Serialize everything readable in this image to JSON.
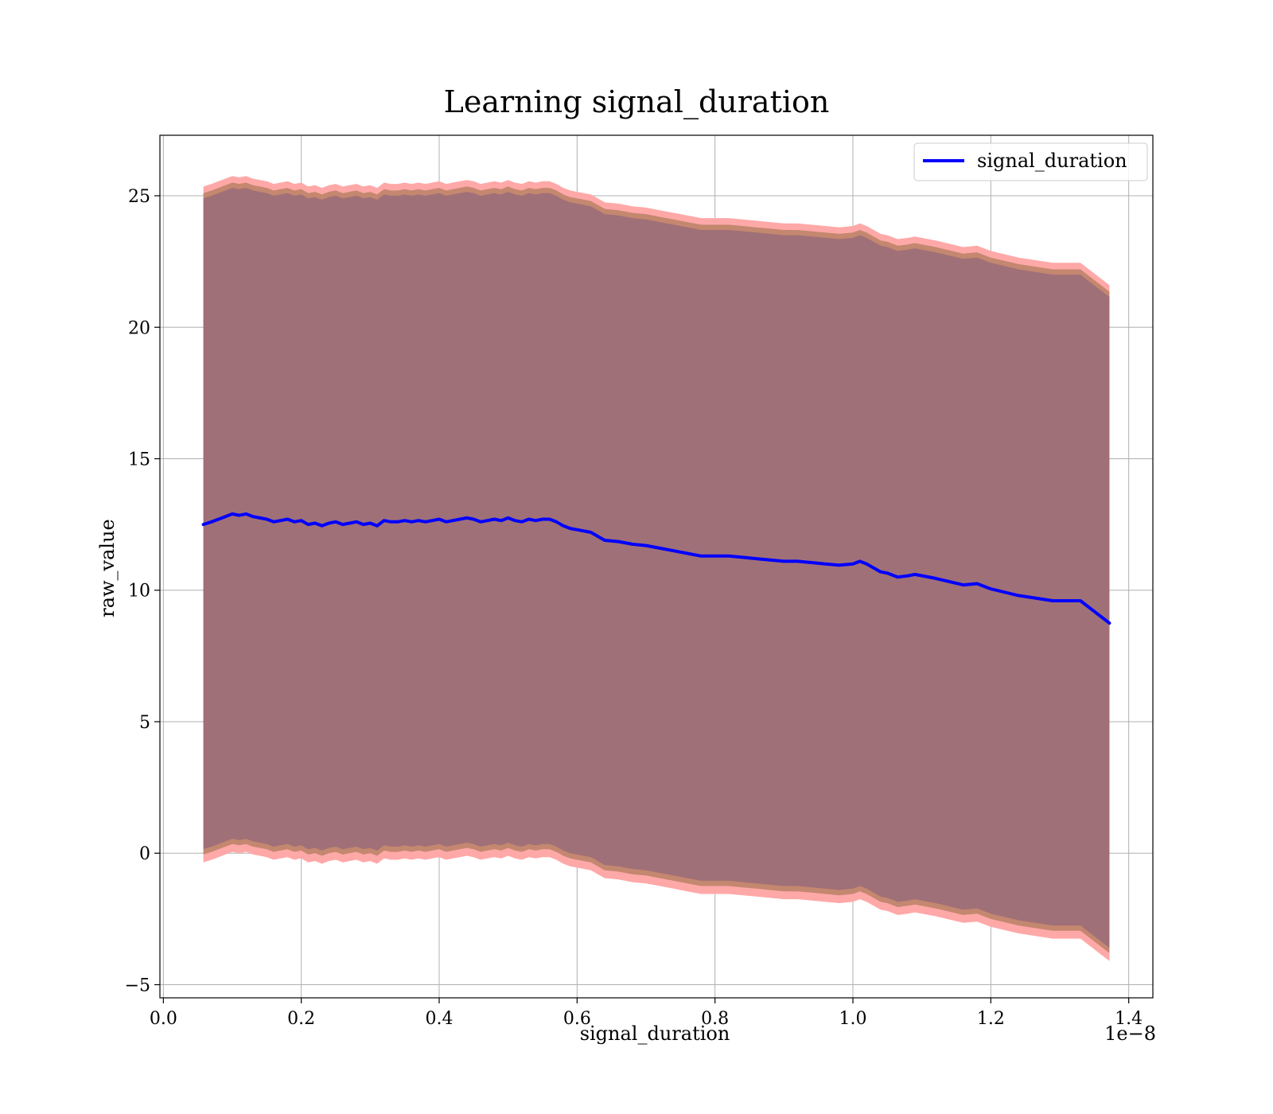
{
  "chart_data": {
    "type": "line",
    "title": "Learning signal_duration",
    "xlabel": "signal_duration",
    "ylabel": "raw_value",
    "x_offset_label": "1e−8",
    "xlim": [
      -0.005,
      1.435
    ],
    "ylim": [
      -5.5,
      27.3
    ],
    "x_ticks": [
      0.0,
      0.2,
      0.4,
      0.6,
      0.8,
      1.0,
      1.2,
      1.4
    ],
    "x_tick_labels": [
      "0.0",
      "0.2",
      "0.4",
      "0.6",
      "0.8",
      "1.0",
      "1.2",
      "1.4"
    ],
    "y_ticks": [
      -5,
      0,
      5,
      10,
      15,
      20,
      25
    ],
    "y_tick_labels": [
      "−5",
      "0",
      "5",
      "10",
      "15",
      "20",
      "25"
    ],
    "grid": true,
    "legend_position": "top-right",
    "colors": {
      "line": "#0000ff",
      "band_outer": "#ffa8a8",
      "band_middle": "#c4876f",
      "band_inner": "#a07078"
    },
    "series": [
      {
        "name": "signal_duration",
        "x": [
          0.058,
          0.07,
          0.08,
          0.09,
          0.1,
          0.11,
          0.12,
          0.13,
          0.14,
          0.15,
          0.16,
          0.17,
          0.18,
          0.19,
          0.2,
          0.21,
          0.22,
          0.23,
          0.24,
          0.25,
          0.26,
          0.27,
          0.28,
          0.29,
          0.3,
          0.31,
          0.32,
          0.33,
          0.34,
          0.35,
          0.36,
          0.37,
          0.38,
          0.39,
          0.4,
          0.41,
          0.42,
          0.43,
          0.44,
          0.45,
          0.46,
          0.47,
          0.48,
          0.49,
          0.5,
          0.51,
          0.52,
          0.53,
          0.54,
          0.55,
          0.56,
          0.57,
          0.58,
          0.59,
          0.6,
          0.62,
          0.64,
          0.66,
          0.68,
          0.7,
          0.72,
          0.74,
          0.76,
          0.78,
          0.8,
          0.82,
          0.84,
          0.86,
          0.88,
          0.9,
          0.92,
          0.94,
          0.96,
          0.98,
          1.0,
          1.01,
          1.02,
          1.04,
          1.05,
          1.065,
          1.08,
          1.09,
          1.12,
          1.16,
          1.18,
          1.2,
          1.24,
          1.29,
          1.31,
          1.33,
          1.372
        ],
        "y": [
          12.5,
          12.6,
          12.7,
          12.8,
          12.9,
          12.85,
          12.9,
          12.8,
          12.75,
          12.7,
          12.6,
          12.65,
          12.7,
          12.6,
          12.65,
          12.5,
          12.55,
          12.45,
          12.55,
          12.6,
          12.5,
          12.55,
          12.6,
          12.5,
          12.55,
          12.45,
          12.65,
          12.6,
          12.6,
          12.65,
          12.6,
          12.65,
          12.6,
          12.65,
          12.7,
          12.6,
          12.65,
          12.7,
          12.75,
          12.7,
          12.6,
          12.65,
          12.7,
          12.65,
          12.75,
          12.65,
          12.6,
          12.7,
          12.65,
          12.7,
          12.7,
          12.6,
          12.45,
          12.35,
          12.3,
          12.2,
          11.9,
          11.85,
          11.75,
          11.7,
          11.6,
          11.5,
          11.4,
          11.3,
          11.3,
          11.3,
          11.25,
          11.2,
          11.15,
          11.1,
          11.1,
          11.05,
          11.0,
          10.95,
          11.0,
          11.1,
          11.0,
          10.7,
          10.65,
          10.5,
          10.55,
          10.6,
          10.45,
          10.2,
          10.25,
          10.05,
          9.8,
          9.6,
          9.6,
          9.6,
          8.75
        ]
      }
    ]
  }
}
